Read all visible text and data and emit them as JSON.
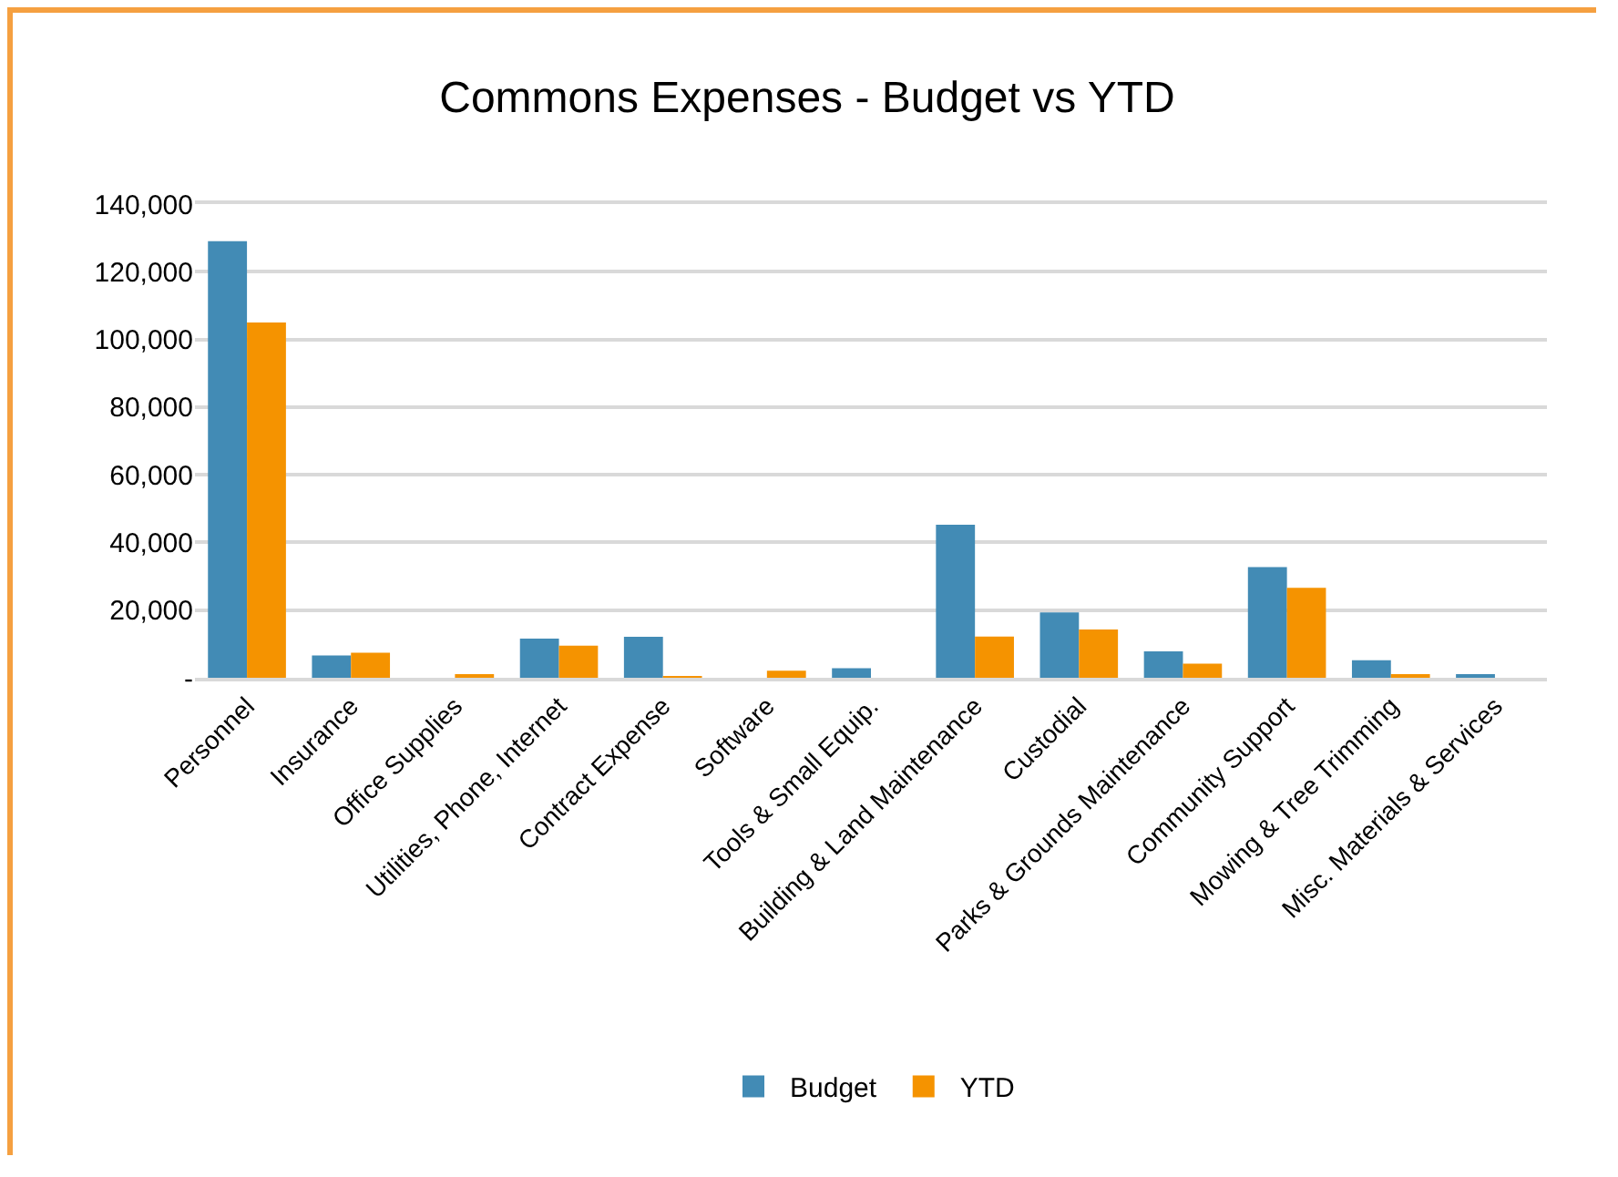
{
  "chart_data": {
    "type": "bar",
    "title": "Commons Expenses - Budget vs YTD",
    "categories": [
      "Personnel",
      "Insurance",
      "Office Supplies",
      "Utilities, Phone, Internet",
      "Contract Expense",
      "Software",
      "Tools & Small Equip.",
      "Building & Land Maintenance",
      "Custodial",
      "Parks & Grounds Maintenance",
      "Community Support",
      "Mowing & Tree Trimming",
      "Misc. Materials & Services"
    ],
    "series": [
      {
        "name": "Budget",
        "color": "#428bb5",
        "values": [
          129000,
          6600,
          0,
          11600,
          12100,
          0,
          2800,
          45200,
          19300,
          7800,
          32700,
          5200,
          700
        ]
      },
      {
        "name": "YTD",
        "color": "#f59300",
        "values": [
          105000,
          7400,
          700,
          9500,
          200,
          2100,
          0,
          12200,
          14300,
          4200,
          26600,
          1000,
          0
        ]
      }
    ],
    "ylim": [
      0,
      140000
    ],
    "yticks": [
      {
        "value": 0,
        "label": "-"
      },
      {
        "value": 20000,
        "label": "20,000"
      },
      {
        "value": 40000,
        "label": "40,000"
      },
      {
        "value": 60000,
        "label": "60,000"
      },
      {
        "value": 80000,
        "label": "80,000"
      },
      {
        "value": 100000,
        "label": "100,000"
      },
      {
        "value": 120000,
        "label": "120,000"
      },
      {
        "value": 140000,
        "label": "140,000"
      }
    ],
    "grid": "y",
    "legend": "bottom"
  }
}
